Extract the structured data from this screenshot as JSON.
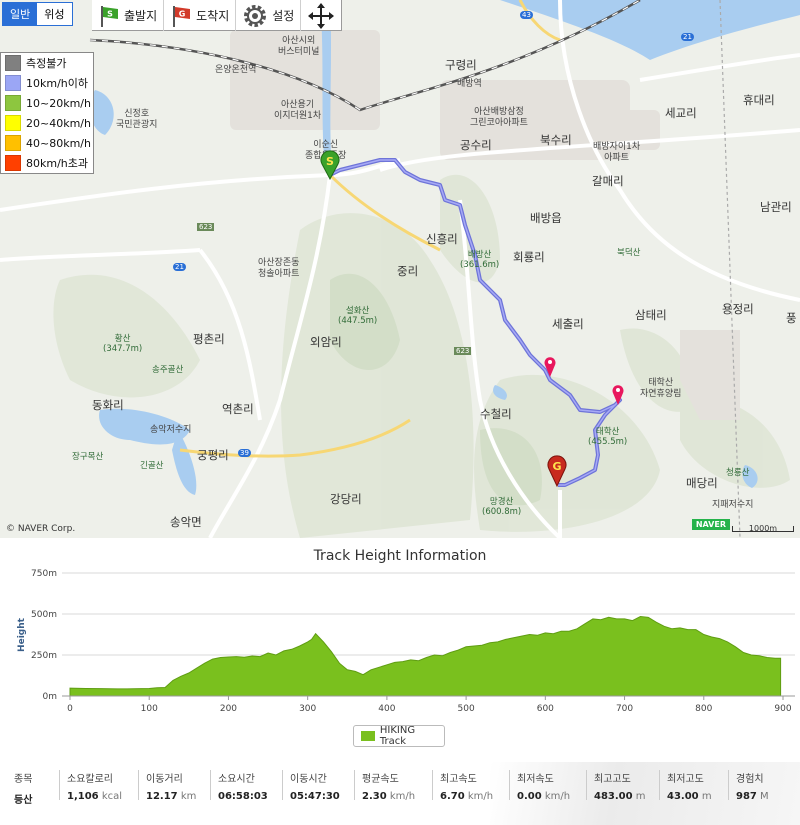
{
  "toolbar": {
    "map_types": [
      "일반",
      "위성"
    ],
    "start_label": "출발지",
    "end_label": "도착지",
    "settings_label": "설정"
  },
  "speed_legend": [
    {
      "label": "측정불가",
      "color": "#808080"
    },
    {
      "label": "10km/h이하",
      "color": "#9ba6f5"
    },
    {
      "label": "10~20km/h",
      "color": "#8dc63f"
    },
    {
      "label": "20~40km/h",
      "color": "#ffff00"
    },
    {
      "label": "40~80km/h",
      "color": "#ffc000"
    },
    {
      "label": "80km/h초과",
      "color": "#ff4000"
    }
  ],
  "map": {
    "places": [
      "구령리",
      "배방역",
      "세교리",
      "휴대리",
      "공수리",
      "북수리",
      "배방읍",
      "갈매리",
      "남관리",
      "신흥리",
      "회룡리",
      "중리",
      "세출리",
      "삼태리",
      "용정리",
      "평촌리",
      "외암리",
      "동화리",
      "역촌리",
      "수철리",
      "궁평리",
      "매당리",
      "강당리",
      "송악면",
      "풍"
    ],
    "pois": [
      "아산시외\n버스터미널",
      "온양온천역",
      "아산용기\n이지더원1차",
      "이순신\n종합운동장",
      "신정호\n국민관광지",
      "아산배방삼정\n그린코아아파트",
      "배방자이1차\n아파트",
      "아산장존동\n청솔아파트",
      "송악저수지",
      "지패저수지",
      "태학산\n자연휴양림"
    ],
    "peaks": [
      "배방산\n(361.6m)",
      "설화산\n(447.5m)",
      "황산\n(347.7m)",
      "송주골산",
      "장구목산",
      "긴골산",
      "태학산\n(455.5m)",
      "망경산\n(600.8m)",
      "북덕산",
      "청룡산"
    ],
    "routes": [
      "623",
      "623",
      "21",
      "21",
      "43",
      "39"
    ],
    "credit": "© NAVER Corp.",
    "logo": "NAVER",
    "scale": "1000m"
  },
  "chart_data": {
    "type": "area",
    "title": "Track Height Information",
    "ylabel": "Height",
    "xlabel": "",
    "xlim": [
      0,
      900
    ],
    "ylim": [
      0,
      750
    ],
    "x_ticks": [
      0,
      100,
      200,
      300,
      400,
      500,
      600,
      700,
      800,
      900
    ],
    "y_ticks": [
      "0m",
      "250m",
      "500m",
      "750m"
    ],
    "grid": true,
    "series": [
      {
        "name": "HIKING Track",
        "color": "#7ac01e",
        "x": [
          0,
          20,
          40,
          60,
          80,
          100,
          110,
          120,
          130,
          140,
          150,
          160,
          170,
          180,
          190,
          200,
          210,
          220,
          230,
          240,
          250,
          260,
          270,
          280,
          290,
          300,
          305,
          310,
          320,
          330,
          340,
          350,
          360,
          370,
          380,
          390,
          400,
          410,
          420,
          430,
          440,
          450,
          460,
          470,
          480,
          490,
          500,
          510,
          520,
          530,
          540,
          550,
          560,
          570,
          580,
          590,
          600,
          610,
          620,
          630,
          640,
          650,
          660,
          670,
          680,
          690,
          700,
          710,
          720,
          730,
          740,
          750,
          760,
          770,
          780,
          790,
          800,
          810,
          820,
          830,
          840,
          850,
          860,
          870,
          880,
          890,
          897
        ],
        "values": [
          48,
          46,
          45,
          43,
          44,
          46,
          50,
          52,
          95,
          120,
          140,
          170,
          200,
          225,
          235,
          238,
          240,
          236,
          244,
          240,
          262,
          250,
          275,
          285,
          305,
          330,
          345,
          380,
          330,
          270,
          200,
          160,
          150,
          130,
          160,
          175,
          190,
          205,
          210,
          220,
          215,
          235,
          250,
          245,
          265,
          280,
          300,
          305,
          310,
          325,
          330,
          345,
          355,
          365,
          375,
          370,
          385,
          380,
          395,
          395,
          410,
          440,
          470,
          465,
          480,
          470,
          470,
          460,
          485,
          480,
          450,
          425,
          410,
          415,
          405,
          405,
          375,
          360,
          350,
          330,
          300,
          265,
          250,
          245,
          235,
          230,
          230
        ]
      }
    ]
  },
  "stats": [
    {
      "label": "종목",
      "value": "등산",
      "unit": ""
    },
    {
      "label": "소요칼로리",
      "value": "1,106",
      "unit": "kcal"
    },
    {
      "label": "이동거리",
      "value": "12.17",
      "unit": "km"
    },
    {
      "label": "소요시간",
      "value": "06:58:03",
      "unit": ""
    },
    {
      "label": "이동시간",
      "value": "05:47:30",
      "unit": ""
    },
    {
      "label": "평균속도",
      "value": "2.30",
      "unit": "km/h"
    },
    {
      "label": "최고속도",
      "value": "6.70",
      "unit": "km/h"
    },
    {
      "label": "최저속도",
      "value": "0.00",
      "unit": "km/h"
    },
    {
      "label": "최고고도",
      "value": "483.00",
      "unit": "m"
    },
    {
      "label": "최저고도",
      "value": "43.00",
      "unit": "m"
    },
    {
      "label": "경험치",
      "value": "987",
      "unit": "M"
    }
  ]
}
